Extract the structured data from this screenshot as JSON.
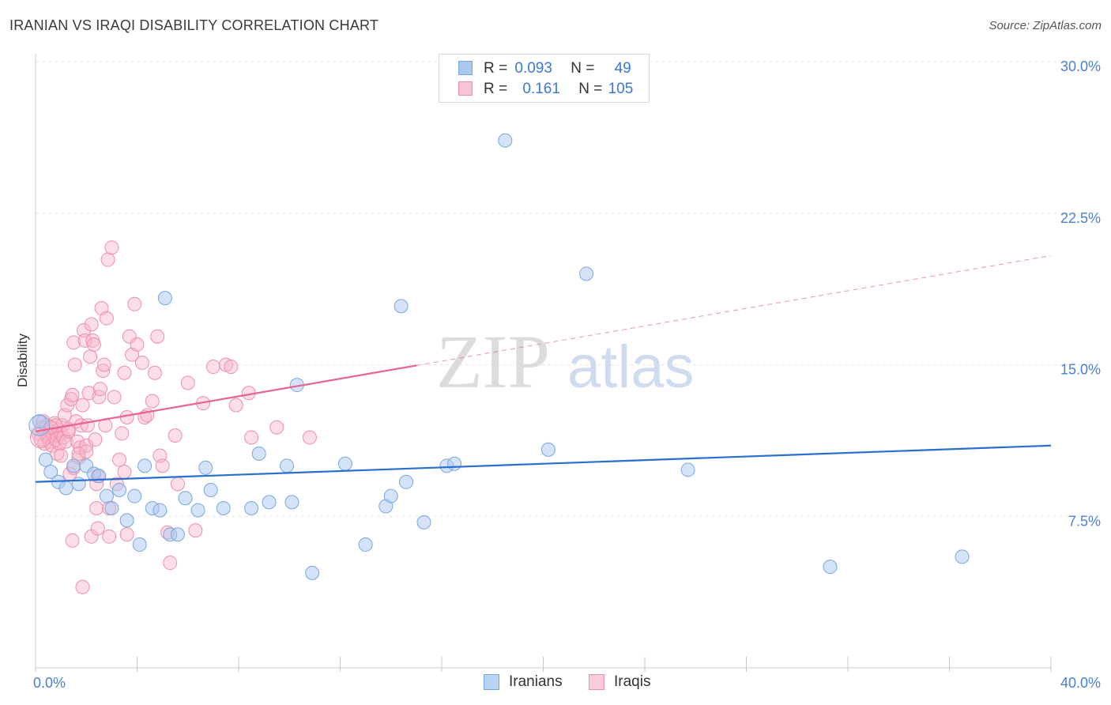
{
  "header": {
    "title": "IRANIAN VS IRAQI DISABILITY CORRELATION CHART",
    "source": "Source: ZipAtlas.com"
  },
  "legend": {
    "rows": [
      {
        "r_label": "R =",
        "r_value": "0.093",
        "n_label": "N =",
        "n_value": "49"
      },
      {
        "r_label": "R =",
        "r_value": "0.161",
        "n_label": "N =",
        "n_value": "105"
      }
    ]
  },
  "bottom_legend": {
    "iranians": "Iranians",
    "iraqis": "Iraqis"
  },
  "watermark": {
    "zip": "ZIP",
    "atlas": "atlas"
  },
  "colors": {
    "iranians_fill": "#a9c8f0",
    "iranians_stroke": "#7aa6e0",
    "iranians_line": "#2a6fd0",
    "iraqis_fill": "#f7b6c9",
    "iraqis_stroke": "#ef8eaa",
    "iraqis_line": "#e8648f",
    "grid": "#e4e4e4",
    "tick_label": "#4a7fd0"
  },
  "chart_data": {
    "type": "scatter",
    "title": "IRANIAN VS IRAQI DISABILITY CORRELATION CHART",
    "xlabel": "",
    "ylabel": "Disability",
    "xlim": [
      0,
      40
    ],
    "ylim": [
      0,
      30
    ],
    "x_tick_labels": [
      "0.0%",
      "40.0%"
    ],
    "y_ticks": [
      7.5,
      15.0,
      22.5,
      30.0
    ],
    "y_tick_labels": [
      "7.5%",
      "15.0%",
      "22.5%",
      "30.0%"
    ],
    "grid": true,
    "series": [
      {
        "name": "Iranians",
        "R": 0.093,
        "N": 49,
        "trend": {
          "x0": 0,
          "y0": 9.2,
          "x1": 40,
          "y1": 11.0,
          "solid_until": 40
        },
        "points": [
          [
            0.15,
            12.2
          ],
          [
            0.4,
            10.3
          ],
          [
            0.6,
            9.7
          ],
          [
            0.9,
            9.2
          ],
          [
            1.2,
            8.9
          ],
          [
            1.5,
            10.0
          ],
          [
            1.7,
            9.1
          ],
          [
            2.0,
            10.0
          ],
          [
            2.3,
            9.6
          ],
          [
            2.5,
            9.5
          ],
          [
            2.8,
            8.5
          ],
          [
            3.0,
            7.9
          ],
          [
            3.3,
            8.8
          ],
          [
            3.6,
            7.3
          ],
          [
            3.9,
            8.5
          ],
          [
            4.1,
            6.1
          ],
          [
            4.3,
            10.0
          ],
          [
            4.6,
            7.9
          ],
          [
            4.9,
            7.8
          ],
          [
            5.1,
            18.3
          ],
          [
            5.3,
            6.6
          ],
          [
            5.6,
            6.6
          ],
          [
            5.9,
            8.4
          ],
          [
            6.4,
            7.8
          ],
          [
            6.7,
            9.9
          ],
          [
            6.9,
            8.8
          ],
          [
            7.4,
            7.9
          ],
          [
            8.5,
            7.9
          ],
          [
            8.8,
            10.6
          ],
          [
            9.2,
            8.2
          ],
          [
            9.9,
            10.0
          ],
          [
            10.1,
            8.2
          ],
          [
            10.3,
            14.0
          ],
          [
            10.9,
            4.7
          ],
          [
            12.2,
            10.1
          ],
          [
            13.0,
            6.1
          ],
          [
            13.8,
            8.0
          ],
          [
            14.0,
            8.5
          ],
          [
            14.4,
            17.9
          ],
          [
            14.6,
            9.2
          ],
          [
            15.3,
            7.2
          ],
          [
            16.2,
            10.0
          ],
          [
            16.5,
            10.1
          ],
          [
            18.5,
            26.1
          ],
          [
            20.2,
            10.8
          ],
          [
            21.7,
            19.5
          ],
          [
            25.7,
            9.8
          ],
          [
            31.3,
            5.0
          ],
          [
            36.5,
            5.5
          ]
        ]
      },
      {
        "name": "Iraqis",
        "R": 0.161,
        "N": 105,
        "trend": {
          "x0": 0,
          "y0": 11.7,
          "x1": 40,
          "y1": 20.4,
          "solid_until": 15.0
        },
        "points": [
          [
            0.1,
            11.6
          ],
          [
            0.2,
            11.3
          ],
          [
            0.25,
            11.9
          ],
          [
            0.3,
            12.2
          ],
          [
            0.35,
            11.1
          ],
          [
            0.4,
            11.6
          ],
          [
            0.45,
            12.0
          ],
          [
            0.5,
            11.4
          ],
          [
            0.55,
            11.2
          ],
          [
            0.6,
            11.7
          ],
          [
            0.65,
            11.0
          ],
          [
            0.7,
            11.5
          ],
          [
            0.75,
            12.1
          ],
          [
            0.8,
            11.3
          ],
          [
            0.85,
            10.6
          ],
          [
            0.9,
            11.8
          ],
          [
            0.95,
            11.1
          ],
          [
            1.0,
            11.6
          ],
          [
            1.05,
            12.0
          ],
          [
            1.1,
            11.4
          ],
          [
            1.15,
            12.5
          ],
          [
            1.2,
            11.2
          ],
          [
            1.25,
            13.0
          ],
          [
            1.3,
            11.7
          ],
          [
            1.35,
            9.6
          ],
          [
            1.4,
            13.3
          ],
          [
            1.45,
            13.5
          ],
          [
            1.5,
            16.1
          ],
          [
            1.55,
            15.0
          ],
          [
            1.6,
            12.2
          ],
          [
            1.65,
            11.2
          ],
          [
            1.7,
            10.4
          ],
          [
            1.75,
            10.9
          ],
          [
            1.8,
            12.0
          ],
          [
            1.85,
            13.0
          ],
          [
            1.9,
            16.7
          ],
          [
            1.95,
            16.2
          ],
          [
            2.0,
            11.0
          ],
          [
            2.05,
            12.0
          ],
          [
            2.1,
            13.6
          ],
          [
            2.15,
            15.4
          ],
          [
            2.2,
            17.0
          ],
          [
            2.25,
            16.2
          ],
          [
            2.3,
            16.0
          ],
          [
            2.35,
            11.3
          ],
          [
            2.4,
            9.1
          ],
          [
            2.45,
            9.5
          ],
          [
            2.5,
            13.4
          ],
          [
            2.55,
            13.8
          ],
          [
            2.6,
            17.8
          ],
          [
            2.65,
            14.7
          ],
          [
            2.7,
            15.0
          ],
          [
            2.75,
            12.0
          ],
          [
            2.8,
            17.3
          ],
          [
            2.85,
            20.2
          ],
          [
            2.9,
            6.5
          ],
          [
            3.0,
            20.8
          ],
          [
            3.1,
            13.4
          ],
          [
            3.2,
            9.1
          ],
          [
            3.3,
            10.3
          ],
          [
            3.4,
            11.6
          ],
          [
            3.5,
            14.6
          ],
          [
            3.6,
            12.4
          ],
          [
            3.7,
            16.4
          ],
          [
            3.8,
            15.5
          ],
          [
            3.9,
            18.0
          ],
          [
            4.0,
            16.0
          ],
          [
            4.2,
            15.1
          ],
          [
            4.3,
            12.4
          ],
          [
            4.4,
            12.5
          ],
          [
            4.6,
            13.2
          ],
          [
            4.7,
            14.6
          ],
          [
            4.8,
            16.4
          ],
          [
            4.9,
            10.5
          ],
          [
            5.0,
            10.0
          ],
          [
            5.2,
            6.7
          ],
          [
            5.3,
            5.2
          ],
          [
            5.5,
            11.5
          ],
          [
            5.6,
            9.1
          ],
          [
            6.0,
            14.1
          ],
          [
            6.3,
            6.8
          ],
          [
            6.6,
            13.1
          ],
          [
            7.0,
            14.9
          ],
          [
            7.5,
            15.0
          ],
          [
            7.7,
            14.9
          ],
          [
            7.9,
            13.0
          ],
          [
            8.4,
            13.6
          ],
          [
            8.5,
            11.4
          ],
          [
            9.5,
            11.9
          ],
          [
            10.8,
            11.4
          ],
          [
            1.45,
            6.3
          ],
          [
            1.85,
            4.0
          ],
          [
            2.2,
            6.5
          ],
          [
            2.4,
            7.9
          ],
          [
            2.45,
            6.9
          ],
          [
            2.9,
            7.9
          ],
          [
            3.6,
            6.6
          ],
          [
            3.5,
            9.7
          ],
          [
            1.5,
            9.9
          ],
          [
            1.7,
            10.6
          ],
          [
            1.0,
            10.5
          ],
          [
            2.0,
            10.7
          ],
          [
            1.3,
            11.8
          ],
          [
            0.8,
            12.0
          ],
          [
            0.6,
            11.9
          ]
        ]
      }
    ]
  }
}
